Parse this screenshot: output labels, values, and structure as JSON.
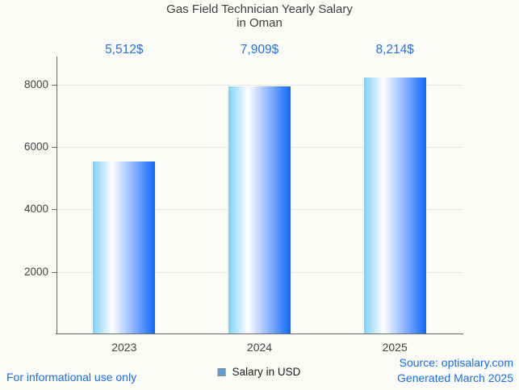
{
  "title": {
    "line1": "Gas Field Technician Yearly Salary",
    "line2": "in Oman"
  },
  "legend": {
    "label": "Salary in USD"
  },
  "footer": {
    "disclaimer": "For informational use only",
    "source": "Source: optisalary.com",
    "generated": "Generated March 2025"
  },
  "colors": {
    "background": "#FBFBF8",
    "title_text": "#3F3F3F",
    "axis_text": "#424242",
    "axis_line": "#6B6B6B",
    "gridline": "#E8E7E3",
    "value_label_blue": "#2470E8",
    "footer_blue": "#1A6DE3",
    "bar_gradient_left": "#7FD0F7",
    "bar_gradient_mid": "#FFFFFF",
    "bar_gradient_right": "#1268FA",
    "legend_marker_fill": "#609EDA",
    "legend_marker_border": "#83898F"
  },
  "chart_data": {
    "type": "bar",
    "title": "Gas Field Technician Yearly Salary in Oman",
    "categories": [
      "2023",
      "2024",
      "2025"
    ],
    "values": [
      5512,
      7909,
      8214
    ],
    "value_labels": [
      "5,512$",
      "7,909$",
      "8,214$"
    ],
    "series_name": "Salary in USD",
    "xlabel": "",
    "ylabel": "",
    "ylim": [
      0,
      8900
    ],
    "yticks": [
      2000,
      4000,
      6000,
      8000
    ],
    "grid": true,
    "legend_position": "bottom",
    "bar_orientation": "vertical"
  }
}
